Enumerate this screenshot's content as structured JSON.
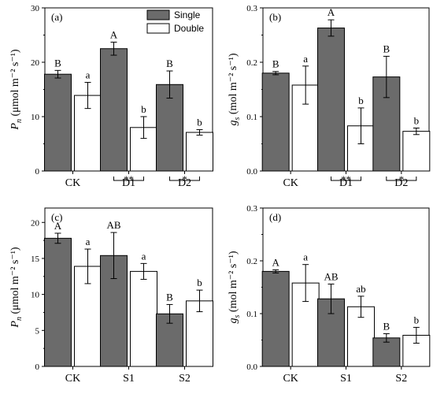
{
  "legend": [
    {
      "name": "Single",
      "color": "#6b6b6b"
    },
    {
      "name": "Double",
      "color": "#ffffff"
    }
  ],
  "chart_data": [
    {
      "panel": "(a)",
      "type": "bar",
      "categories": [
        "CK",
        "D1",
        "D2"
      ],
      "series": [
        {
          "name": "Single",
          "values": [
            17.8,
            22.5,
            15.9
          ],
          "errors": [
            0.7,
            1.2,
            2.5
          ],
          "labels": [
            "B",
            "A",
            "B"
          ],
          "color": "#6b6b6b"
        },
        {
          "name": "Double",
          "values": [
            13.9,
            8.0,
            7.1
          ],
          "errors": [
            2.4,
            2.0,
            0.5
          ],
          "labels": [
            "a",
            "b",
            "b"
          ],
          "color": "#ffffff"
        }
      ],
      "ylim": [
        0,
        30
      ],
      "yticks": [
        0,
        10,
        20,
        30
      ],
      "ylabel": {
        "sym": "P",
        "sub": "n",
        "unit": "(μmol m⁻² s⁻¹)"
      },
      "significance": [
        {
          "category": "D1",
          "text": "**"
        },
        {
          "category": "D2",
          "text": "*"
        }
      ]
    },
    {
      "panel": "(b)",
      "type": "bar",
      "categories": [
        "CK",
        "D1",
        "D2"
      ],
      "series": [
        {
          "name": "Single",
          "values": [
            0.18,
            0.263,
            0.173
          ],
          "errors": [
            0.003,
            0.015,
            0.038
          ],
          "labels": [
            "B",
            "A",
            "B"
          ],
          "color": "#6b6b6b"
        },
        {
          "name": "Double",
          "values": [
            0.158,
            0.083,
            0.073
          ],
          "errors": [
            0.035,
            0.033,
            0.006
          ],
          "labels": [
            "a",
            "b",
            "b"
          ],
          "color": "#ffffff"
        }
      ],
      "ylim": [
        0,
        0.3
      ],
      "yticks": [
        0.0,
        0.1,
        0.2,
        0.3
      ],
      "ylabel": {
        "sym": "g",
        "sub": "s",
        "unit": "(mol m⁻² s⁻¹)"
      },
      "significance": [
        {
          "category": "D1",
          "text": "**"
        },
        {
          "category": "D2",
          "text": "*"
        }
      ]
    },
    {
      "panel": "(c)",
      "type": "bar",
      "categories": [
        "CK",
        "S1",
        "S2"
      ],
      "series": [
        {
          "name": "Single",
          "values": [
            17.8,
            15.4,
            7.3
          ],
          "errors": [
            0.7,
            3.2,
            1.3
          ],
          "labels": [
            "A",
            "AB",
            "B"
          ],
          "color": "#6b6b6b"
        },
        {
          "name": "Double",
          "values": [
            13.9,
            13.2,
            9.1
          ],
          "errors": [
            2.4,
            1.1,
            1.5
          ],
          "labels": [
            "a",
            "a",
            "b"
          ],
          "color": "#ffffff"
        }
      ],
      "ylim": [
        0,
        22
      ],
      "yticks": [
        0,
        5,
        10,
        15,
        20
      ],
      "ylabel": {
        "sym": "P",
        "sub": "n",
        "unit": "(μmol m⁻² s⁻¹)"
      },
      "significance": []
    },
    {
      "panel": "(d)",
      "type": "bar",
      "categories": [
        "CK",
        "S1",
        "S2"
      ],
      "series": [
        {
          "name": "Single",
          "values": [
            0.18,
            0.128,
            0.054
          ],
          "errors": [
            0.003,
            0.028,
            0.008
          ],
          "labels": [
            "A",
            "AB",
            "B"
          ],
          "color": "#6b6b6b"
        },
        {
          "name": "Double",
          "values": [
            0.158,
            0.113,
            0.059
          ],
          "errors": [
            0.035,
            0.02,
            0.015
          ],
          "labels": [
            "a",
            "ab",
            "b"
          ],
          "color": "#ffffff"
        }
      ],
      "ylim": [
        0,
        0.3
      ],
      "yticks": [
        0.0,
        0.1,
        0.2,
        0.3
      ],
      "ylabel": {
        "sym": "g",
        "sub": "s",
        "unit": "(mol m⁻² s⁻¹)"
      },
      "significance": []
    }
  ]
}
